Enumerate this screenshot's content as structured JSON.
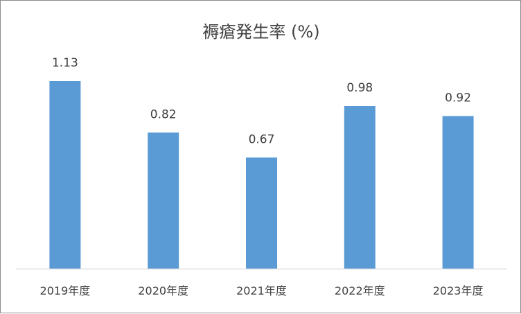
{
  "chart_data": {
    "type": "bar",
    "title": "褥瘡発生率 (%)",
    "xlabel": "",
    "ylabel": "",
    "categories": [
      "2019年度",
      "2020年度",
      "2021年度",
      "2022年度",
      "2023年度"
    ],
    "values": [
      1.13,
      0.82,
      0.67,
      0.98,
      0.92
    ],
    "value_labels": [
      "1.13",
      "0.82",
      "0.67",
      "0.98",
      "0.92"
    ],
    "ylim": [
      0,
      1.13
    ],
    "grid": false,
    "legend": "none",
    "bar_color": "#5b9bd5",
    "axis_color": "#d9d9d9",
    "text_color": "#404040"
  }
}
